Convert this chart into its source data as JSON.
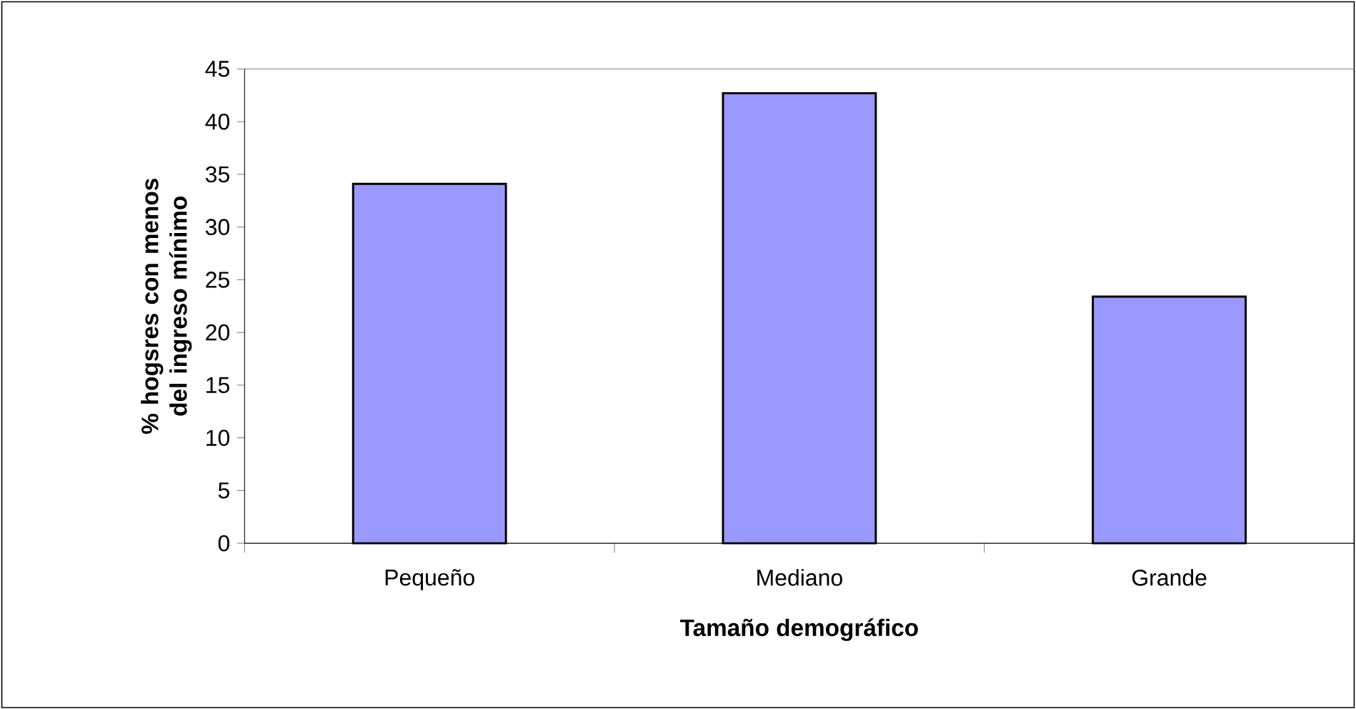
{
  "chart_data": {
    "type": "bar",
    "categories": [
      "Pequeño",
      "Mediano",
      "Grande"
    ],
    "values": [
      34.1,
      42.7,
      23.4
    ],
    "color": "#9999ff",
    "ylim": [
      0,
      45
    ],
    "yticks": [
      0,
      5,
      10,
      15,
      20,
      25,
      30,
      35,
      40,
      45
    ],
    "xlabel": "Tamaño demográfico",
    "ylabel": "% hogsres con menos del ingreso mínimo"
  }
}
